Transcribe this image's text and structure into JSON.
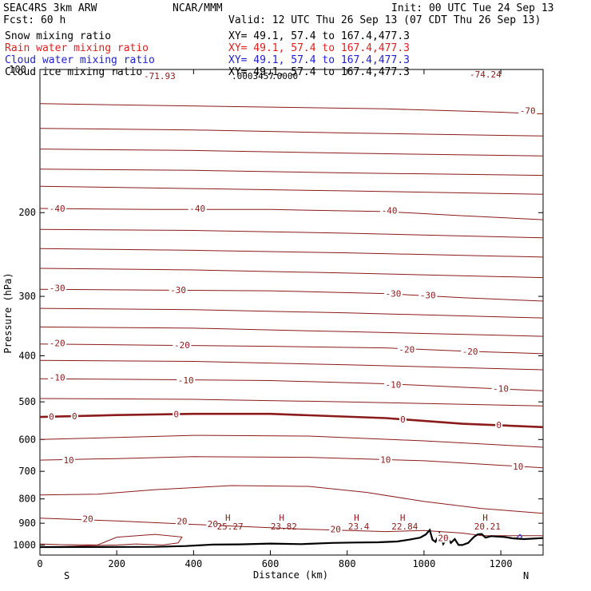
{
  "header": {
    "model_line": "SEAC4RS  3km ARW",
    "org": "NCAR/MMM",
    "init": "Init: 00 UTC Tue 24 Sep 13",
    "fcst": "Fcst:   60 h",
    "valid": "Valid: 12 UTC Thu 26 Sep 13 (07 CDT Thu 26 Sep 13)"
  },
  "legend": [
    {
      "label": "Snow mixing ratio",
      "xy": "XY=  49.1, 57.4 to 167.4,477.3",
      "color": "#000000"
    },
    {
      "label": "Rain water mixing ratio",
      "xy": "XY=  49.1, 57.4 to 167.4,477.3",
      "color": "#e02020"
    },
    {
      "label": "Cloud water mixing ratio",
      "xy": "XY=  49.1, 57.4 to 167.4,477.3",
      "color": "#1e1ed0"
    },
    {
      "label": "Cloud ice mixing ratio",
      "xy": "XY=  49.1, 57.4 to 167.4,477.3",
      "color": "#000000"
    }
  ],
  "chart_data": {
    "type": "line",
    "ylabel": "Pressure (hPa)",
    "xlabel": "Distance (km)",
    "x_left_label": "S",
    "x_right_label": "N",
    "xlim": [
      0,
      1310
    ],
    "ylim": [
      1050,
      100
    ],
    "y_scale": "log",
    "x_ticks": [
      0,
      200,
      400,
      600,
      800,
      1000,
      1200
    ],
    "y_ticks": [
      200,
      300,
      400,
      500,
      600,
      700,
      800,
      900,
      1000
    ],
    "top_axis_label": "100",
    "colors": {
      "isotherm": "#8b1a1a",
      "terrain": "#000000",
      "cloud_water": "#1e1ed0"
    },
    "series": [
      {
        "label": "-70",
        "x": [
          0,
          300,
          600,
          900,
          1200,
          1310
        ],
        "y": [
          118,
          119,
          120,
          121,
          123,
          124
        ]
      },
      {
        "label": "",
        "x": [
          0,
          400,
          800,
          1310
        ],
        "y": [
          133,
          134,
          136,
          138
        ]
      },
      {
        "label": "",
        "x": [
          0,
          400,
          800,
          1310
        ],
        "y": [
          147,
          148,
          150,
          152
        ]
      },
      {
        "label": "",
        "x": [
          0,
          400,
          800,
          1310
        ],
        "y": [
          162,
          163,
          165,
          167
        ]
      },
      {
        "label": "",
        "x": [
          0,
          400,
          800,
          1310
        ],
        "y": [
          176,
          178,
          180,
          183
        ]
      },
      {
        "label": "-40",
        "x": [
          0,
          300,
          600,
          900,
          1100,
          1310
        ],
        "y": [
          196,
          197,
          197,
          199,
          203,
          207
        ]
      },
      {
        "label": "",
        "x": [
          0,
          400,
          800,
          1310
        ],
        "y": [
          217,
          218,
          221,
          226
        ]
      },
      {
        "label": "",
        "x": [
          0,
          400,
          800,
          1310
        ],
        "y": [
          238,
          240,
          243,
          248
        ]
      },
      {
        "label": "",
        "x": [
          0,
          400,
          800,
          1310
        ],
        "y": [
          262,
          264,
          268,
          274
        ]
      },
      {
        "label": "-30",
        "x": [
          0,
          300,
          600,
          900,
          1100,
          1310
        ],
        "y": [
          290,
          291,
          292,
          296,
          302,
          307
        ]
      },
      {
        "label": "",
        "x": [
          0,
          400,
          800,
          1310
        ],
        "y": [
          318,
          320,
          325,
          333
        ]
      },
      {
        "label": "",
        "x": [
          0,
          400,
          800,
          1310
        ],
        "y": [
          348,
          350,
          356,
          364
        ]
      },
      {
        "label": "-20",
        "x": [
          0,
          300,
          600,
          900,
          1100,
          1310
        ],
        "y": [
          378,
          380,
          382,
          385,
          391,
          396
        ]
      },
      {
        "label": "",
        "x": [
          0,
          400,
          800,
          1310
        ],
        "y": [
          409,
          411,
          418,
          428
        ]
      },
      {
        "label": "-10",
        "x": [
          0,
          300,
          600,
          900,
          1100,
          1310
        ],
        "y": [
          447,
          449,
          451,
          458,
          466,
          474
        ]
      },
      {
        "label": "",
        "x": [
          0,
          400,
          800,
          1310
        ],
        "y": [
          492,
          494,
          500,
          510
        ]
      },
      {
        "label": "0",
        "x": [
          0,
          200,
          400,
          600,
          900,
          1100,
          1310
        ],
        "y": [
          538,
          533,
          530,
          530,
          541,
          556,
          565
        ],
        "bold": true
      },
      {
        "label": "",
        "x": [
          0,
          200,
          400,
          700,
          1000,
          1310
        ],
        "y": [
          600,
          594,
          588,
          590,
          604,
          623
        ]
      },
      {
        "label": "10",
        "x": [
          0,
          200,
          400,
          700,
          1000,
          1310
        ],
        "y": [
          663,
          658,
          652,
          654,
          665,
          688
        ]
      },
      {
        "label": "",
        "x": [
          0,
          150,
          300,
          500,
          700,
          850,
          1000,
          1150,
          1310
        ],
        "y": [
          785,
          782,
          765,
          750,
          753,
          775,
          810,
          838,
          858
        ]
      },
      {
        "label": "20",
        "x": [
          0,
          200,
          400,
          700,
          900,
          1000,
          1100,
          1150,
          1310
        ],
        "y": [
          878,
          890,
          905,
          927,
          937,
          932,
          944,
          956,
          956
        ]
      },
      {
        "label": "",
        "x": [
          0,
          50,
          150,
          200,
          300,
          370,
          360,
          320,
          250,
          200,
          150,
          50,
          0
        ],
        "y": [
          995,
          998,
          1000,
          963,
          950,
          962,
          990,
          1000,
          995,
          1000,
          1002,
          1008,
          1008
        ]
      }
    ],
    "contour_labels": [
      {
        "text": "-70",
        "x": 1270,
        "y": 122
      },
      {
        "text": "-40",
        "x": 45,
        "y": 196
      },
      {
        "text": "-40",
        "x": 410,
        "y": 196
      },
      {
        "text": "-40",
        "x": 910,
        "y": 198
      },
      {
        "text": "-30",
        "x": 45,
        "y": 288
      },
      {
        "text": "-30",
        "x": 360,
        "y": 291
      },
      {
        "text": "-30",
        "x": 920,
        "y": 296
      },
      {
        "text": "-30",
        "x": 1010,
        "y": 298
      },
      {
        "text": "-20",
        "x": 45,
        "y": 376
      },
      {
        "text": "-20",
        "x": 370,
        "y": 380
      },
      {
        "text": "-20",
        "x": 955,
        "y": 388
      },
      {
        "text": "-20",
        "x": 1120,
        "y": 392
      },
      {
        "text": "-10",
        "x": 45,
        "y": 444
      },
      {
        "text": "-10",
        "x": 380,
        "y": 450
      },
      {
        "text": "-10",
        "x": 920,
        "y": 460
      },
      {
        "text": "-10",
        "x": 1200,
        "y": 469
      },
      {
        "text": "0",
        "x": 30,
        "y": 537
      },
      {
        "text": "0",
        "x": 90,
        "y": 536
      },
      {
        "text": "0",
        "x": 355,
        "y": 531
      },
      {
        "text": "0",
        "x": 945,
        "y": 544
      },
      {
        "text": "0",
        "x": 1195,
        "y": 559
      },
      {
        "text": "10",
        "x": 75,
        "y": 663
      },
      {
        "text": "10",
        "x": 900,
        "y": 662
      },
      {
        "text": "10",
        "x": 1245,
        "y": 683
      },
      {
        "text": "20",
        "x": 125,
        "y": 880
      },
      {
        "text": "20",
        "x": 370,
        "y": 890
      },
      {
        "text": "20",
        "x": 450,
        "y": 903
      },
      {
        "text": "20",
        "x": 770,
        "y": 926
      },
      {
        "text": "20",
        "x": 1050,
        "y": 966
      }
    ],
    "highs": [
      {
        "label": "H",
        "value": "25.27",
        "x": 495
      },
      {
        "label": "H",
        "value": "23.82",
        "x": 635
      },
      {
        "label": "H",
        "value": "23.4",
        "x": 830
      },
      {
        "label": "H",
        "value": "22.84",
        "x": 950
      },
      {
        "label": "H",
        "value": "20.21",
        "x": 1165
      }
    ],
    "top_values": [
      "-71.93",
      ".0003457",
      ".0000",
      "-74.24"
    ],
    "terrain": {
      "x": [
        0,
        300,
        380,
        450,
        520,
        600,
        680,
        760,
        820,
        880,
        930,
        960,
        990,
        1005,
        1015,
        1022,
        1030,
        1040,
        1050,
        1060,
        1070,
        1080,
        1090,
        1100,
        1115,
        1130,
        1140,
        1150,
        1160,
        1175,
        1190,
        1210,
        1230,
        1260,
        1280,
        1310
      ],
      "y": [
        1010,
        1009,
        1005,
        998,
        997,
        993,
        996,
        990,
        988,
        987,
        983,
        975,
        965,
        950,
        930,
        975,
        985,
        945,
        995,
        965,
        990,
        972,
        1000,
        1000,
        990,
        962,
        950,
        948,
        965,
        958,
        960,
        962,
        968,
        972,
        970,
        967
      ]
    },
    "cloud_water": {
      "x": [
        1240,
        1245,
        1250,
        1255,
        1250,
        1245,
        1240
      ],
      "y": [
        970,
        960,
        950,
        962,
        970,
        972,
        970
      ]
    }
  }
}
